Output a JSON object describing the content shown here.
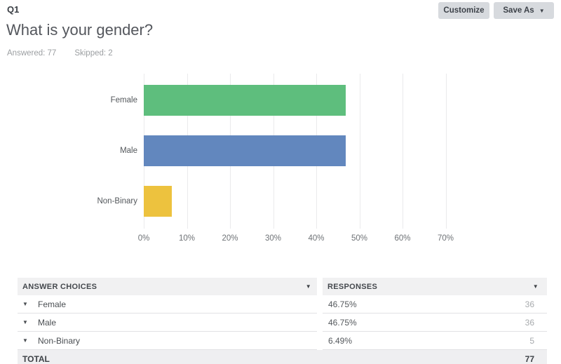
{
  "header": {
    "question_number": "Q1",
    "title": "What is your gender?",
    "answered_label": "Answered: 77",
    "skipped_label": "Skipped: 2",
    "customize_label": "Customize",
    "save_as_label": "Save As"
  },
  "icons": {
    "caret_down": "▼"
  },
  "chart_data": {
    "type": "bar",
    "orientation": "horizontal",
    "title": "What is your gender?",
    "categories": [
      "Female",
      "Male",
      "Non-Binary"
    ],
    "values": [
      46.75,
      46.75,
      6.49
    ],
    "bar_colors": [
      "#5ebe7d",
      "#6287be",
      "#edc23e"
    ],
    "x_ticks": [
      "0%",
      "10%",
      "20%",
      "30%",
      "40%",
      "50%",
      "60%",
      "70%"
    ],
    "xlim": [
      0,
      70
    ],
    "xlabel": "",
    "ylabel": "",
    "grid": true,
    "legend": false
  },
  "table": {
    "headers": [
      "ANSWER CHOICES",
      "RESPONSES"
    ],
    "rows": [
      {
        "choice": "Female",
        "percent": "46.75%",
        "count": "36"
      },
      {
        "choice": "Male",
        "percent": "46.75%",
        "count": "36"
      },
      {
        "choice": "Non-Binary",
        "percent": "6.49%",
        "count": "5"
      }
    ],
    "total_label": "TOTAL",
    "total_count": "77"
  }
}
